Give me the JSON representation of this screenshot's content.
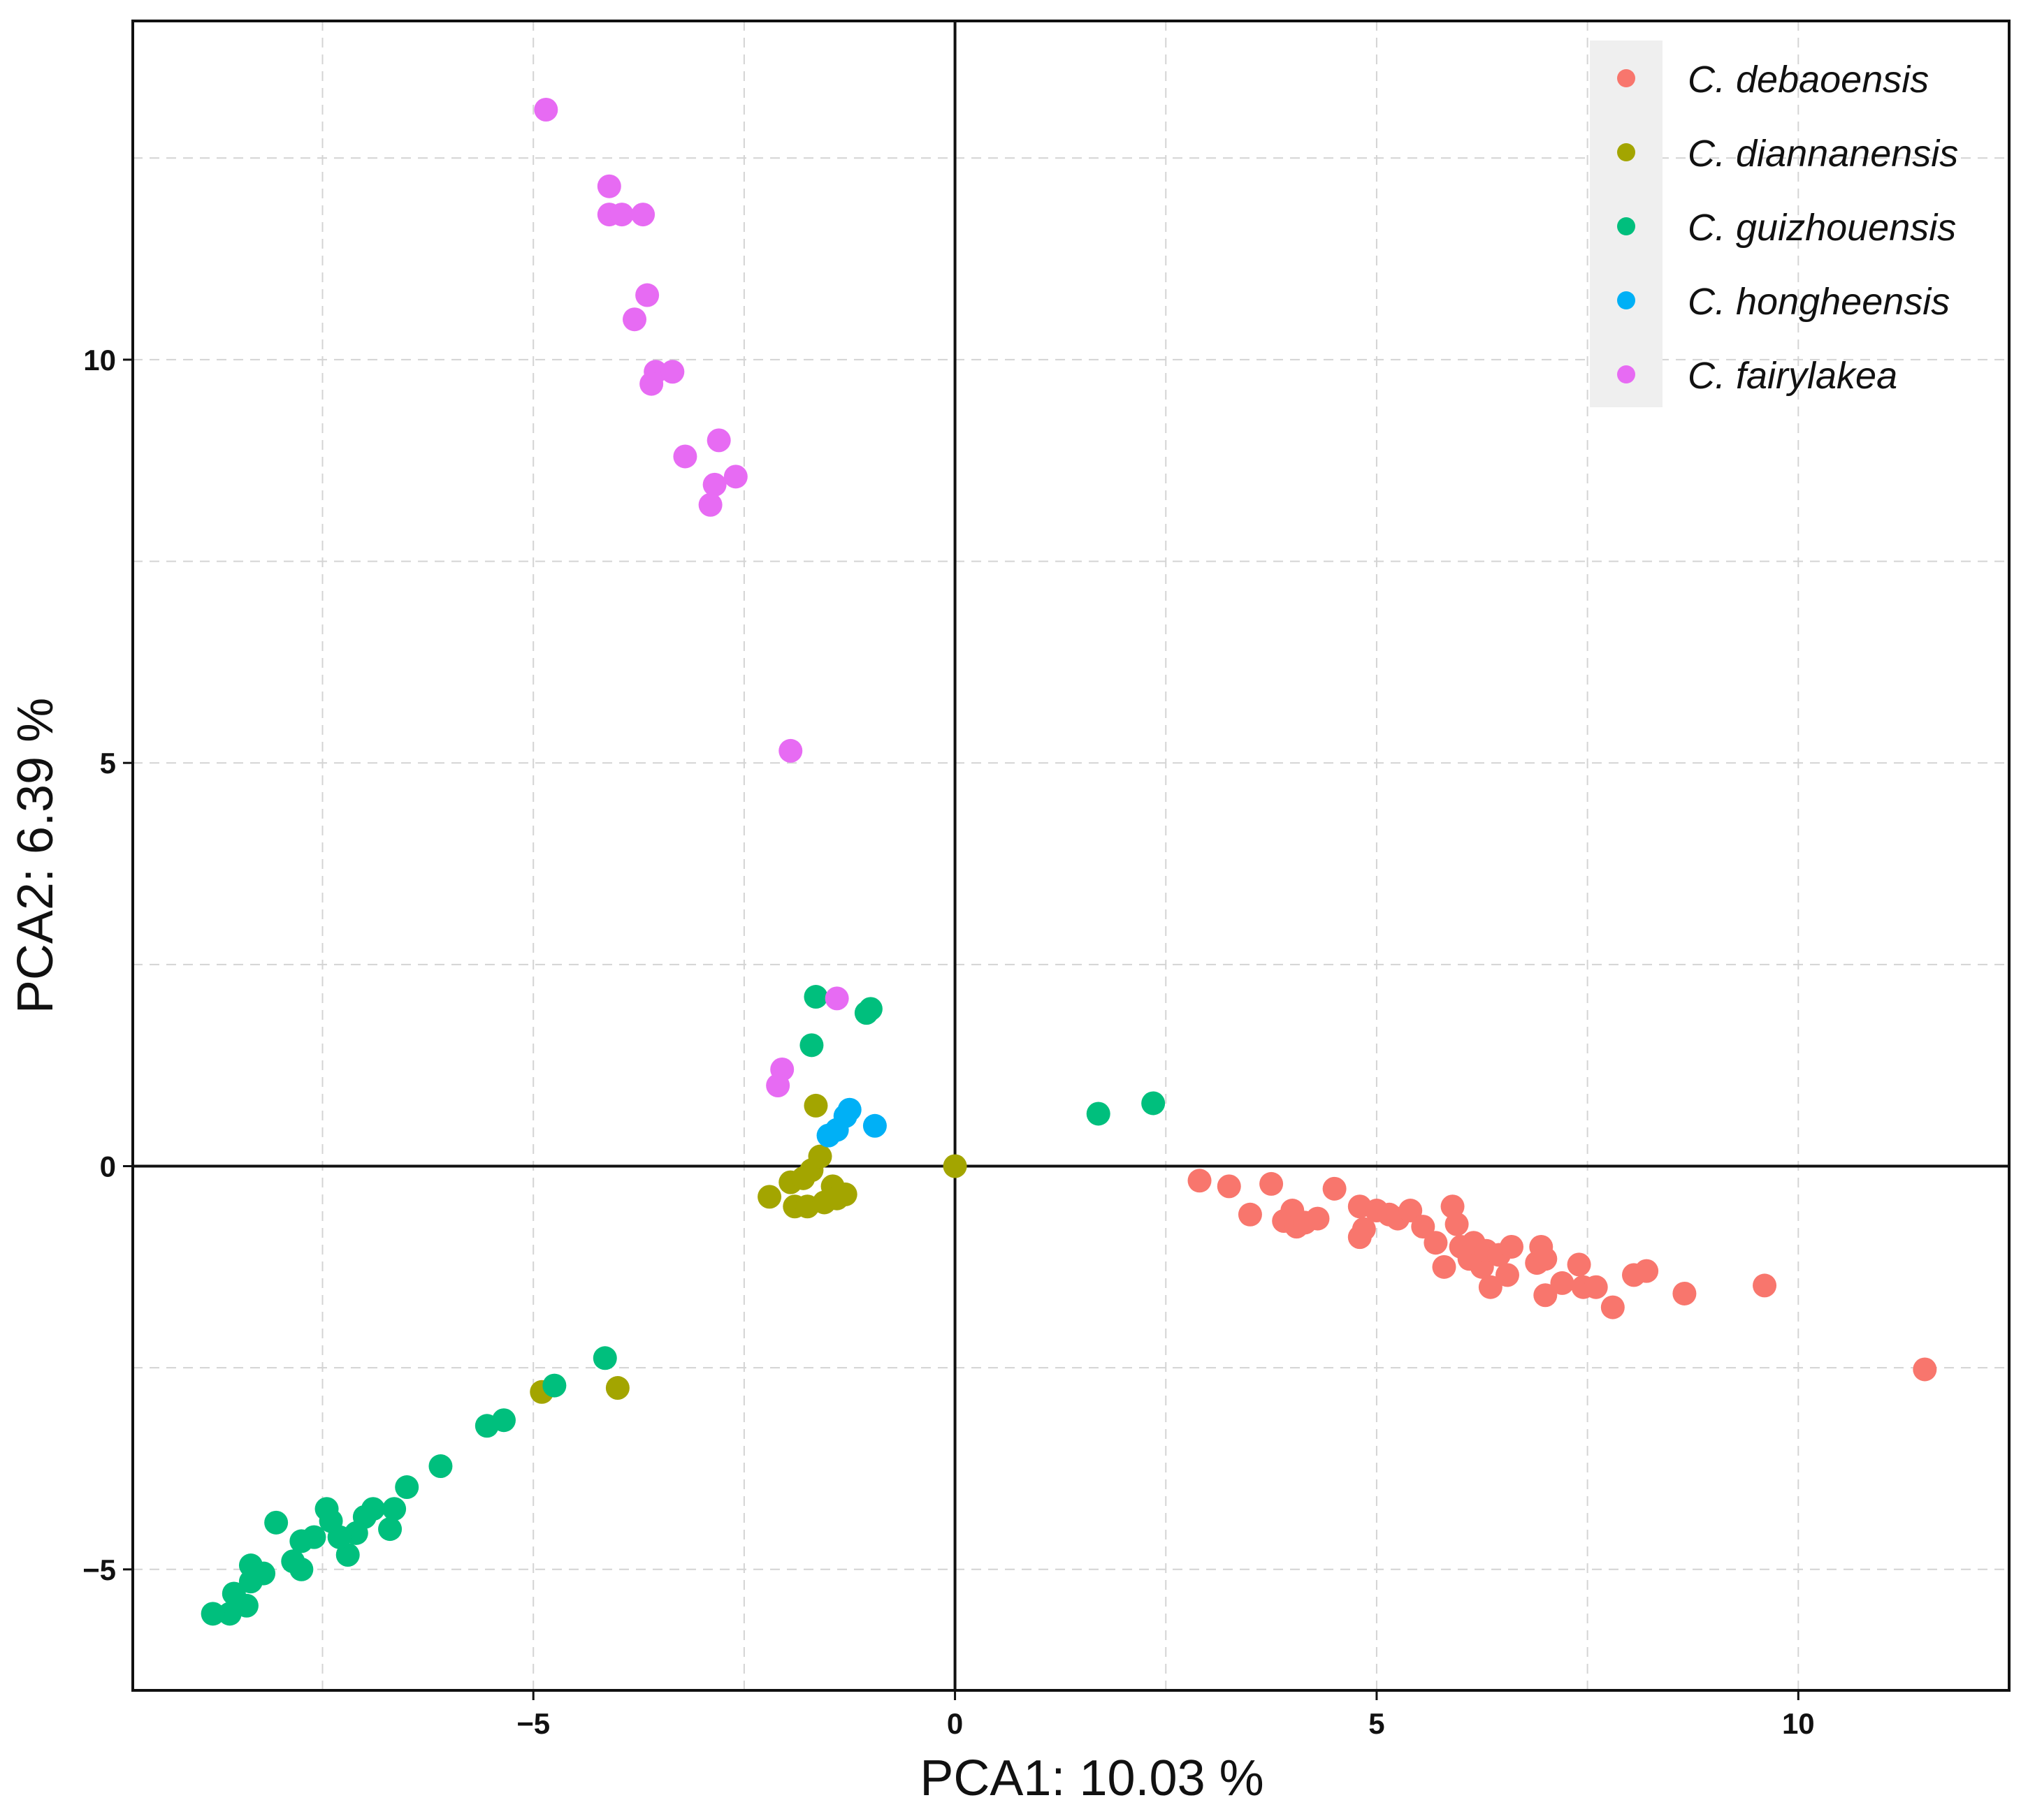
{
  "chart_data": {
    "type": "scatter",
    "title": "",
    "xlabel": "PCA1:  10.03 %",
    "ylabel": "PCA2:  6.39 %",
    "xlim": [
      -9.75,
      12.5
    ],
    "ylim": [
      -6.5,
      14.2
    ],
    "x_ticks": [
      -5,
      0,
      5,
      10
    ],
    "y_ticks": [
      -5,
      0,
      5,
      10
    ],
    "x_tick_labels": [
      "−5",
      "0",
      "5",
      "10"
    ],
    "y_tick_labels": [
      "−5",
      "0",
      "5",
      "10"
    ],
    "grid": true,
    "legend_position": "top-right",
    "series": [
      {
        "name": "C. debaoensis",
        "color": "#F8766D",
        "points": [
          [
            2.9,
            -0.18
          ],
          [
            3.25,
            -0.25
          ],
          [
            3.5,
            -0.6
          ],
          [
            3.75,
            -0.22
          ],
          [
            3.9,
            -0.68
          ],
          [
            4.0,
            -0.55
          ],
          [
            4.05,
            -0.75
          ],
          [
            4.15,
            -0.7
          ],
          [
            4.3,
            -0.65
          ],
          [
            4.5,
            -0.28
          ],
          [
            4.8,
            -0.5
          ],
          [
            4.8,
            -0.88
          ],
          [
            4.85,
            -0.78
          ],
          [
            5.0,
            -0.55
          ],
          [
            5.15,
            -0.6
          ],
          [
            5.25,
            -0.65
          ],
          [
            5.4,
            -0.55
          ],
          [
            5.55,
            -0.75
          ],
          [
            5.7,
            -0.95
          ],
          [
            5.8,
            -1.25
          ],
          [
            5.9,
            -0.5
          ],
          [
            5.95,
            -0.72
          ],
          [
            6.0,
            -1.0
          ],
          [
            6.1,
            -1.15
          ],
          [
            6.15,
            -0.95
          ],
          [
            6.25,
            -1.25
          ],
          [
            6.3,
            -1.05
          ],
          [
            6.35,
            -1.5
          ],
          [
            6.45,
            -1.1
          ],
          [
            6.55,
            -1.35
          ],
          [
            6.6,
            -1.0
          ],
          [
            6.9,
            -1.2
          ],
          [
            6.95,
            -1.0
          ],
          [
            7.0,
            -1.15
          ],
          [
            7.0,
            -1.6
          ],
          [
            7.2,
            -1.45
          ],
          [
            7.4,
            -1.22
          ],
          [
            7.45,
            -1.5
          ],
          [
            7.6,
            -1.5
          ],
          [
            7.8,
            -1.75
          ],
          [
            8.05,
            -1.35
          ],
          [
            8.2,
            -1.3
          ],
          [
            8.65,
            -1.58
          ],
          [
            9.6,
            -1.48
          ],
          [
            11.5,
            -2.52
          ]
        ]
      },
      {
        "name": "C. diannanensis",
        "color": "#A3A500",
        "points": [
          [
            0.0,
            0.0
          ],
          [
            -2.2,
            -0.38
          ],
          [
            -1.95,
            -0.2
          ],
          [
            -1.9,
            -0.5
          ],
          [
            -1.8,
            -0.15
          ],
          [
            -1.75,
            -0.5
          ],
          [
            -1.7,
            -0.05
          ],
          [
            -1.6,
            0.12
          ],
          [
            -1.55,
            -0.45
          ],
          [
            -1.45,
            -0.25
          ],
          [
            -1.4,
            -0.4
          ],
          [
            -1.3,
            -0.35
          ],
          [
            -1.65,
            0.75
          ],
          [
            -4.9,
            -2.8
          ],
          [
            -4.0,
            -2.75
          ]
        ]
      },
      {
        "name": "C. guizhouensis",
        "color": "#00BF7D",
        "points": [
          [
            -1.65,
            2.1
          ],
          [
            -1.7,
            1.5
          ],
          [
            -1.0,
            1.95
          ],
          [
            -1.05,
            1.9
          ],
          [
            1.7,
            0.65
          ],
          [
            2.35,
            0.78
          ],
          [
            -4.15,
            -2.38
          ],
          [
            -4.75,
            -2.72
          ],
          [
            -5.55,
            -3.22
          ],
          [
            -5.35,
            -3.15
          ],
          [
            -6.1,
            -3.72
          ],
          [
            -6.5,
            -3.98
          ],
          [
            -6.65,
            -4.25
          ],
          [
            -6.7,
            -4.5
          ],
          [
            -6.9,
            -4.25
          ],
          [
            -7.0,
            -4.35
          ],
          [
            -7.1,
            -4.55
          ],
          [
            -7.2,
            -4.82
          ],
          [
            -7.3,
            -4.6
          ],
          [
            -7.4,
            -4.4
          ],
          [
            -7.45,
            -4.25
          ],
          [
            -7.6,
            -4.6
          ],
          [
            -7.75,
            -4.65
          ],
          [
            -7.75,
            -5.0
          ],
          [
            -7.85,
            -4.9
          ],
          [
            -8.05,
            -4.42
          ],
          [
            -8.2,
            -5.05
          ],
          [
            -8.35,
            -4.95
          ],
          [
            -8.35,
            -5.15
          ],
          [
            -8.4,
            -5.45
          ],
          [
            -8.55,
            -5.3
          ],
          [
            -8.6,
            -5.55
          ],
          [
            -8.8,
            -5.55
          ]
        ]
      },
      {
        "name": "C. hongheensis",
        "color": "#00B0F6",
        "points": [
          [
            -1.25,
            0.7
          ],
          [
            -1.3,
            0.62
          ],
          [
            -1.4,
            0.45
          ],
          [
            -1.5,
            0.38
          ],
          [
            -0.95,
            0.5
          ]
        ]
      },
      {
        "name": "C. fairylakea",
        "color": "#E76BF3",
        "points": [
          [
            -4.85,
            13.1
          ],
          [
            -4.1,
            12.15
          ],
          [
            -4.1,
            11.8
          ],
          [
            -3.95,
            11.8
          ],
          [
            -3.7,
            11.8
          ],
          [
            -3.65,
            10.8
          ],
          [
            -3.8,
            10.5
          ],
          [
            -3.55,
            9.85
          ],
          [
            -3.6,
            9.7
          ],
          [
            -3.35,
            9.85
          ],
          [
            -2.8,
            9.0
          ],
          [
            -3.2,
            8.8
          ],
          [
            -2.6,
            8.55
          ],
          [
            -2.85,
            8.45
          ],
          [
            -2.9,
            8.2
          ],
          [
            -1.95,
            5.15
          ],
          [
            -2.05,
            1.2
          ],
          [
            -2.1,
            1.0
          ],
          [
            -1.4,
            2.08
          ]
        ]
      }
    ]
  }
}
